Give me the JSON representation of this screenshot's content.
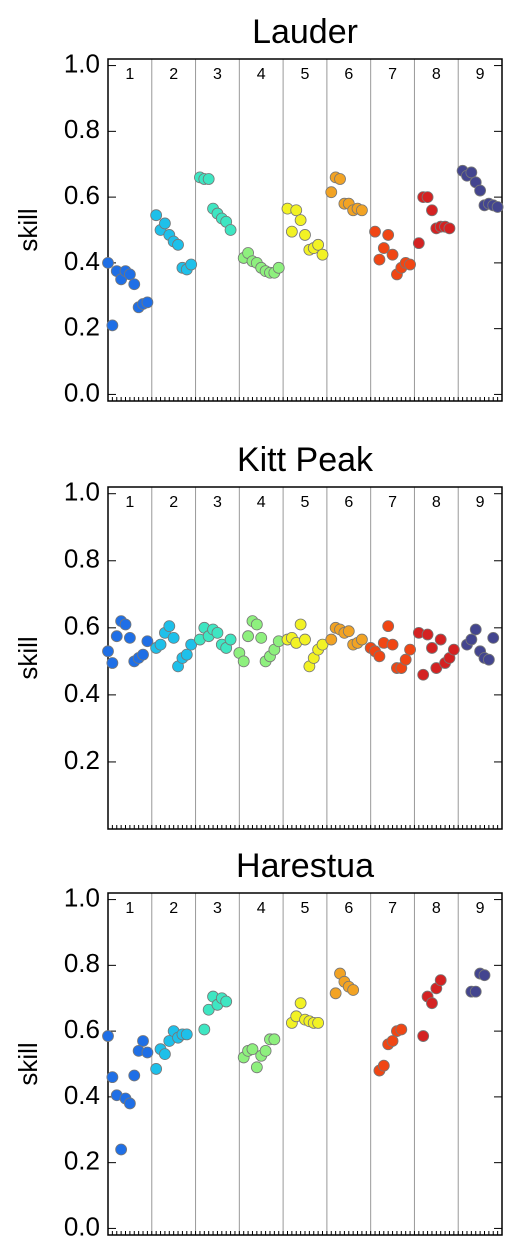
{
  "chart_data": [
    {
      "type": "scatter",
      "title": "Lauder",
      "ylabel": "skill",
      "xlim": [
        0,
        90
      ],
      "ylim": [
        -0.02,
        1.02
      ],
      "yticks": [
        {
          "value": 0,
          "label": "0.0"
        },
        0.2,
        0.4,
        0.6,
        0.8,
        {
          "value": 1,
          "label": "1.0"
        }
      ],
      "series": [
        {
          "name": "1",
          "color": "#1f6fe6",
          "x": [
            0,
            1,
            2,
            3,
            4,
            5,
            6,
            7,
            8,
            9
          ],
          "values": [
            0.4,
            0.21,
            0.375,
            0.35,
            0.375,
            0.365,
            0.335,
            0.265,
            0.275,
            0.28
          ]
        },
        {
          "name": "2",
          "color": "#1ec0ea",
          "x": [
            11,
            12,
            13,
            14,
            15,
            16,
            17,
            18,
            19
          ],
          "values": [
            0.545,
            0.5,
            0.52,
            0.485,
            0.465,
            0.455,
            0.385,
            0.38,
            0.395
          ]
        },
        {
          "name": "3",
          "color": "#3ee6c2",
          "x": [
            21,
            22,
            23,
            24,
            25,
            26,
            27,
            28
          ],
          "values": [
            0.66,
            0.655,
            0.655,
            0.565,
            0.55,
            0.535,
            0.525,
            0.5
          ]
        },
        {
          "name": "4",
          "color": "#8ef07e",
          "x": [
            31,
            32,
            33,
            34,
            35,
            36,
            37,
            38,
            39
          ],
          "values": [
            0.415,
            0.43,
            0.405,
            0.4,
            0.385,
            0.375,
            0.37,
            0.37,
            0.385
          ]
        },
        {
          "name": "5",
          "color": "#f2f224",
          "x": [
            41,
            42,
            43,
            44,
            45,
            46,
            47,
            48,
            49
          ],
          "values": [
            0.565,
            0.495,
            0.56,
            0.53,
            0.485,
            0.44,
            0.445,
            0.455,
            0.425
          ]
        },
        {
          "name": "6",
          "color": "#f2a324",
          "x": [
            51,
            52,
            53,
            54,
            55,
            56,
            57,
            58
          ],
          "values": [
            0.615,
            0.66,
            0.655,
            0.58,
            0.58,
            0.56,
            0.565,
            0.56
          ]
        },
        {
          "name": "7",
          "color": "#f04614",
          "x": [
            61,
            62,
            63,
            64,
            65,
            66,
            67,
            68,
            69
          ],
          "values": [
            0.495,
            0.41,
            0.445,
            0.485,
            0.425,
            0.365,
            0.385,
            0.4,
            0.395
          ]
        },
        {
          "name": "8",
          "color": "#d42222",
          "x": [
            71,
            72,
            73,
            74,
            75,
            76,
            77,
            78
          ],
          "values": [
            0.46,
            0.6,
            0.6,
            0.56,
            0.505,
            0.51,
            0.51,
            0.505
          ]
        },
        {
          "name": "9",
          "color": "#43458f",
          "x": [
            81,
            82,
            83,
            84,
            85,
            86,
            87,
            88,
            89
          ],
          "values": [
            0.68,
            0.665,
            0.675,
            0.645,
            0.62,
            0.575,
            0.58,
            0.575,
            0.57
          ]
        }
      ]
    },
    {
      "type": "scatter",
      "title": "Kitt Peak",
      "ylabel": "skill",
      "xlim": [
        0,
        90
      ],
      "ylim": [
        0,
        1.02
      ],
      "yticks": [
        0.2,
        0.4,
        0.6,
        0.8,
        {
          "value": 1,
          "label": "1.0"
        }
      ],
      "series": [
        {
          "name": "1",
          "color": "#1f6fe6",
          "x": [
            0,
            1,
            2,
            3,
            4,
            5,
            6,
            7,
            8,
            9
          ],
          "values": [
            0.53,
            0.495,
            0.575,
            0.62,
            0.61,
            0.57,
            0.5,
            0.51,
            0.52,
            0.56
          ]
        },
        {
          "name": "2",
          "color": "#1ec0ea",
          "x": [
            11,
            12,
            13,
            14,
            15,
            16,
            17,
            18,
            19
          ],
          "values": [
            0.54,
            0.55,
            0.585,
            0.605,
            0.57,
            0.485,
            0.51,
            0.52,
            0.55
          ]
        },
        {
          "name": "3",
          "color": "#3ee6c2",
          "x": [
            21,
            22,
            23,
            24,
            25,
            26,
            27,
            28
          ],
          "values": [
            0.565,
            0.6,
            0.575,
            0.595,
            0.585,
            0.55,
            0.54,
            0.565
          ]
        },
        {
          "name": "4",
          "color": "#8ef07e",
          "x": [
            30,
            31,
            32,
            33,
            34,
            35,
            36,
            37,
            38,
            39
          ],
          "values": [
            0.525,
            0.5,
            0.575,
            0.62,
            0.61,
            0.57,
            0.5,
            0.515,
            0.535,
            0.56
          ]
        },
        {
          "name": "5",
          "color": "#f2f224",
          "x": [
            41,
            42,
            43,
            44,
            45,
            46,
            47,
            48,
            49
          ],
          "values": [
            0.565,
            0.57,
            0.555,
            0.61,
            0.565,
            0.485,
            0.51,
            0.535,
            0.55
          ]
        },
        {
          "name": "6",
          "color": "#f2a324",
          "x": [
            51,
            52,
            53,
            54,
            55,
            56,
            57,
            58
          ],
          "values": [
            0.565,
            0.6,
            0.595,
            0.585,
            0.59,
            0.55,
            0.555,
            0.565
          ]
        },
        {
          "name": "7",
          "color": "#f04614",
          "x": [
            60,
            61,
            62,
            63,
            64,
            65,
            66,
            67,
            68,
            69
          ],
          "values": [
            0.54,
            0.53,
            0.515,
            0.555,
            0.605,
            0.55,
            0.48,
            0.48,
            0.505,
            0.535
          ]
        },
        {
          "name": "8",
          "color": "#d42222",
          "x": [
            71,
            72,
            73,
            74,
            75,
            76,
            77,
            78,
            79
          ],
          "values": [
            0.585,
            0.46,
            0.58,
            0.54,
            0.48,
            0.565,
            0.495,
            0.51,
            0.535
          ]
        },
        {
          "name": "9",
          "color": "#43458f",
          "x": [
            82,
            83,
            84,
            85,
            86,
            87,
            88
          ],
          "values": [
            0.55,
            0.565,
            0.595,
            0.53,
            0.51,
            0.505,
            0.57
          ]
        }
      ]
    },
    {
      "type": "scatter",
      "title": "Harestua",
      "ylabel": "skill",
      "xlim": [
        0,
        90
      ],
      "ylim": [
        -0.02,
        1.02
      ],
      "yticks": [
        {
          "value": 0,
          "label": "0.0"
        },
        0.2,
        0.4,
        0.6,
        0.8,
        {
          "value": 1,
          "label": "1.0"
        }
      ],
      "series": [
        {
          "name": "1",
          "color": "#1f6fe6",
          "x": [
            0,
            1,
            2,
            3,
            4,
            5,
            6,
            7,
            8,
            9
          ],
          "values": [
            0.585,
            0.46,
            0.405,
            0.24,
            0.395,
            0.38,
            0.465,
            0.54,
            0.57,
            0.535
          ]
        },
        {
          "name": "2",
          "color": "#1ec0ea",
          "x": [
            11,
            12,
            13,
            14,
            15,
            16,
            17,
            18
          ],
          "values": [
            0.485,
            0.545,
            0.53,
            0.57,
            0.6,
            0.58,
            0.59,
            0.59
          ]
        },
        {
          "name": "3",
          "color": "#3ee6c2",
          "x": [
            22,
            23,
            24,
            25,
            26,
            27
          ],
          "values": [
            0.605,
            0.665,
            0.705,
            0.68,
            0.7,
            0.69
          ]
        },
        {
          "name": "4",
          "color": "#8ef07e",
          "x": [
            31,
            32,
            33,
            34,
            35,
            36,
            37,
            38
          ],
          "values": [
            0.52,
            0.54,
            0.545,
            0.49,
            0.525,
            0.54,
            0.575,
            0.575
          ]
        },
        {
          "name": "5",
          "color": "#f2f224",
          "x": [
            42,
            43,
            44,
            45,
            46,
            47,
            48
          ],
          "values": [
            0.625,
            0.645,
            0.685,
            0.635,
            0.63,
            0.625,
            0.625
          ]
        },
        {
          "name": "6",
          "color": "#f2a324",
          "x": [
            52,
            53,
            54,
            55,
            56
          ],
          "values": [
            0.715,
            0.775,
            0.75,
            0.735,
            0.725
          ]
        },
        {
          "name": "7",
          "color": "#f04614",
          "x": [
            62,
            63,
            64,
            65,
            66,
            67
          ],
          "values": [
            0.48,
            0.495,
            0.56,
            0.57,
            0.6,
            0.605
          ]
        },
        {
          "name": "8",
          "color": "#d42222",
          "x": [
            72,
            73,
            74,
            75,
            76
          ],
          "values": [
            0.585,
            0.705,
            0.685,
            0.73,
            0.755
          ]
        },
        {
          "name": "9",
          "color": "#43458f",
          "x": [
            83,
            84,
            85,
            86
          ],
          "values": [
            0.72,
            0.72,
            0.775,
            0.77
          ]
        }
      ]
    }
  ]
}
